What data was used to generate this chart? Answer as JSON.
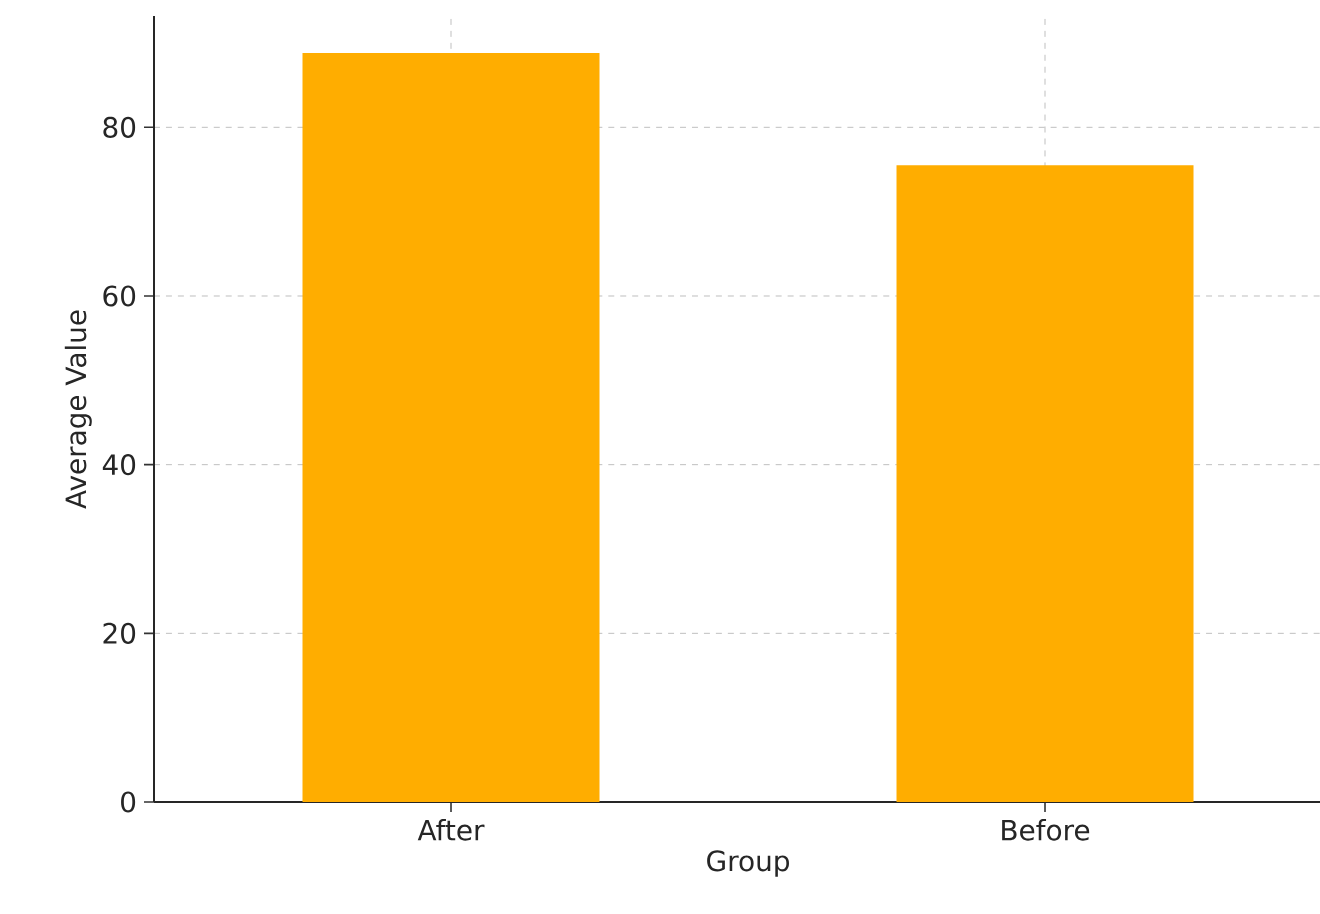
{
  "chart_data": {
    "type": "bar",
    "xlabel": "Group",
    "ylabel": "Average Value",
    "categories": [
      "After",
      "Before"
    ],
    "values": [
      88.8,
      75.5
    ],
    "color": "#ffad00",
    "ylim": [
      0,
      93.2
    ],
    "yticks": [
      0,
      20,
      40,
      60,
      80
    ],
    "grid": true
  }
}
